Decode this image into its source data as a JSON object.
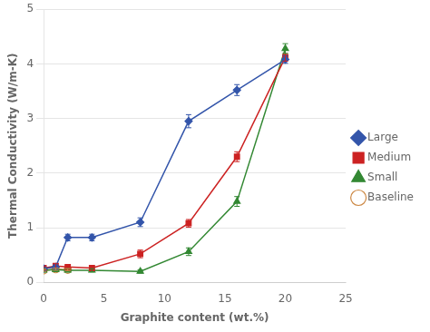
{
  "chart_data": {
    "type": "line",
    "x_label": "Graphite content (wt.%)",
    "y_label": "Thermal Conductivity (W/m-K)",
    "xlim": [
      0,
      25
    ],
    "xticks": [
      0,
      5,
      10,
      15,
      20,
      25
    ],
    "ylim": [
      0,
      5
    ],
    "yticks": [
      0,
      1,
      2,
      3,
      4,
      5
    ],
    "grid": "y",
    "legend": "right",
    "series": [
      {
        "name": "Large",
        "color": "#3355aa",
        "marker": "diamond",
        "x": [
          0,
          1,
          2,
          4,
          8,
          12,
          16,
          20
        ],
        "values": [
          0.25,
          0.28,
          0.82,
          0.82,
          1.1,
          2.95,
          3.52,
          4.08
        ],
        "yerr": [
          0.04,
          0.04,
          0.06,
          0.06,
          0.08,
          0.12,
          0.1,
          0.07
        ]
      },
      {
        "name": "Medium",
        "color": "#cc2222",
        "marker": "square",
        "x": [
          0,
          1,
          2,
          4,
          8,
          12,
          16,
          20
        ],
        "values": [
          0.26,
          0.3,
          0.28,
          0.26,
          0.52,
          1.08,
          2.3,
          4.12
        ],
        "yerr": [
          0.03,
          0.04,
          0.03,
          0.03,
          0.07,
          0.07,
          0.09,
          0.07
        ]
      },
      {
        "name": "Small",
        "color": "#338833",
        "marker": "triangle",
        "x": [
          0,
          1,
          2,
          4,
          8,
          12,
          16,
          20
        ],
        "values": [
          0.22,
          0.23,
          0.22,
          0.22,
          0.2,
          0.56,
          1.48,
          4.28
        ],
        "yerr": [
          0.03,
          0.03,
          0.03,
          0.03,
          0.03,
          0.07,
          0.09,
          0.09
        ]
      },
      {
        "name": "Baseline",
        "color": "#cc8844",
        "marker": "open circle",
        "x": [
          0,
          1,
          2
        ],
        "values": [
          0.22,
          0.24,
          0.23
        ],
        "yerr": [
          0.02,
          0.02,
          0.02
        ]
      }
    ]
  }
}
